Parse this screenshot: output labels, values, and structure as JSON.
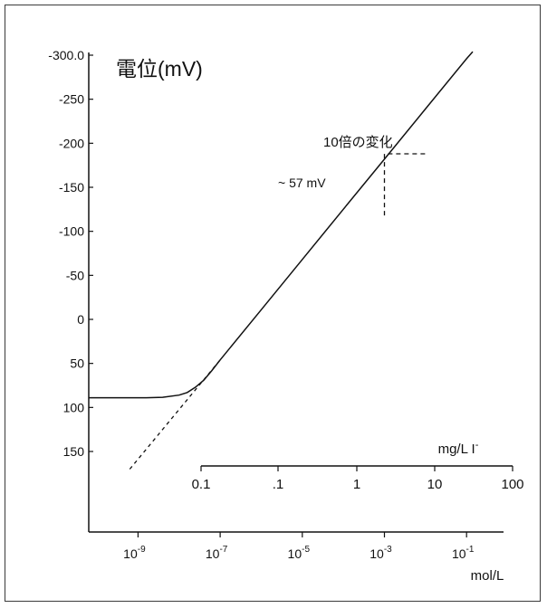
{
  "chart_data": {
    "type": "line",
    "title": "電位(mV)",
    "y_ticks": [
      "-300.0",
      "-250",
      "-200",
      "-150",
      "-100",
      "-50",
      "0",
      "50",
      "100",
      "150"
    ],
    "ylim": [
      150,
      -300
    ],
    "x_bottom": {
      "label": "mol/L",
      "ticks": [
        {
          "base": "10",
          "exp": "-9"
        },
        {
          "base": "10",
          "exp": "-7"
        },
        {
          "base": "10",
          "exp": "-5"
        },
        {
          "base": "10",
          "exp": "-3"
        },
        {
          "base": "10",
          "exp": "-1"
        }
      ],
      "tick_values": [
        -9,
        -7,
        -5,
        -3,
        -1
      ],
      "xlim": [
        -10.2,
        -0.1
      ]
    },
    "x_top": {
      "label": "mg/L I",
      "label_superscript": "-",
      "ticks": [
        "0.1",
        ".1",
        "1",
        "10",
        "100"
      ]
    },
    "series": [
      {
        "style": "solid",
        "points": [
          [
            -10.2,
            89
          ],
          [
            -8.8,
            89
          ],
          [
            -8.4,
            88.5
          ],
          [
            -8.0,
            86
          ],
          [
            -7.8,
            83
          ],
          [
            -7.6,
            77
          ],
          [
            -7.4,
            69
          ],
          [
            -7.2,
            58
          ],
          [
            -7.0,
            46
          ],
          [
            -6.0,
            -11
          ],
          [
            -5.0,
            -68
          ],
          [
            -4.0,
            -125
          ],
          [
            -3.0,
            -182
          ],
          [
            -2.0,
            -239
          ],
          [
            -1.0,
            -296
          ],
          [
            -0.85,
            -304
          ]
        ]
      },
      {
        "style": "dashed",
        "points": [
          [
            -9.2,
            170
          ],
          [
            -7.0,
            46
          ]
        ]
      }
    ],
    "annotations": {
      "slope_label": "~ 57 mV",
      "decade_label": "10倍の変化",
      "slope_triangle": {
        "x_from": -3.0,
        "x_to": -2.0,
        "y_from": -118,
        "y_to": -188
      }
    }
  }
}
